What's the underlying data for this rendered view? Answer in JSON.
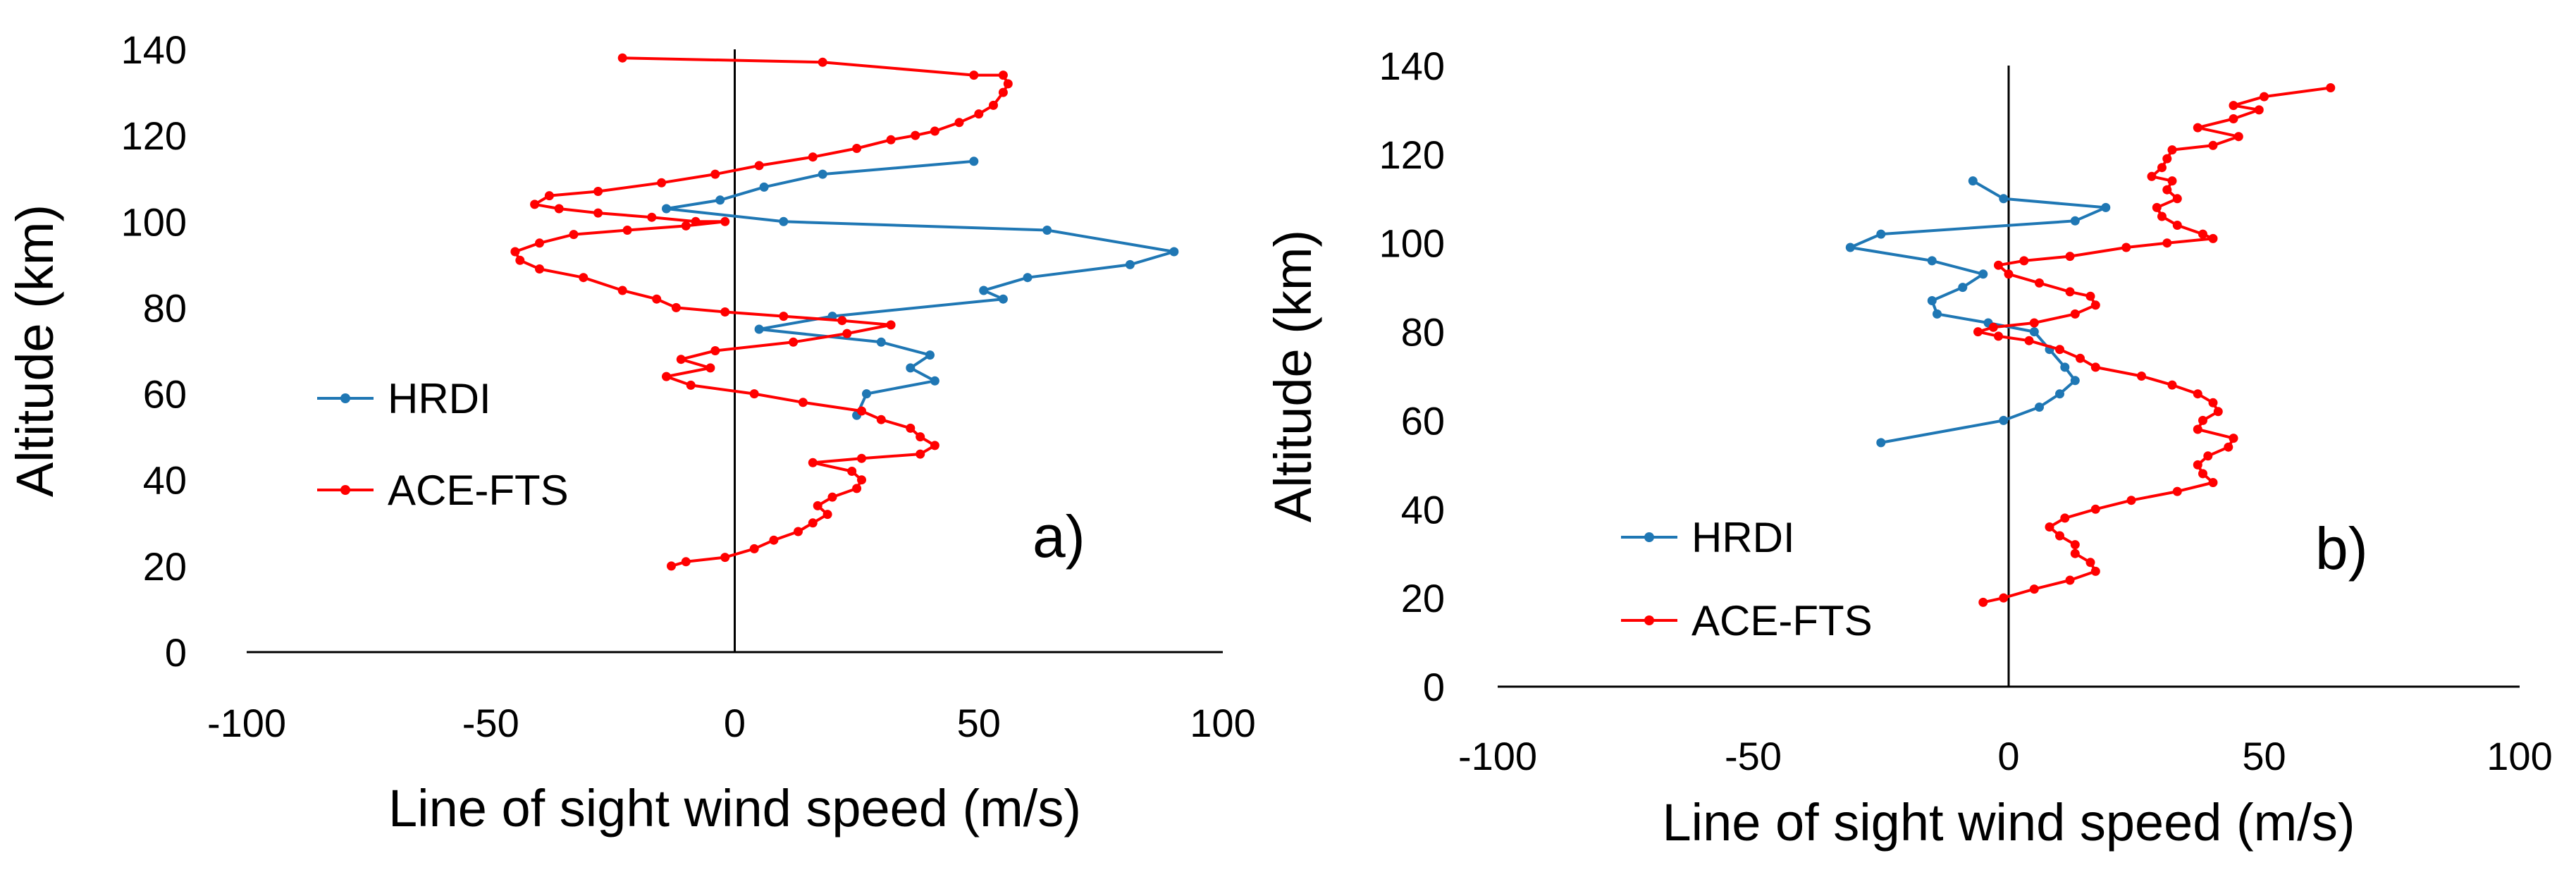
{
  "colors": {
    "hrdi": "#1f77b4",
    "ace": "#ff0000",
    "axis": "#000000",
    "background": "#ffffff"
  },
  "chart_data": [
    {
      "id": "a",
      "type": "line",
      "panel_label": "a)",
      "title": "",
      "xlabel": "Line of sight wind speed (m/s)",
      "ylabel": "Altitude (km)",
      "xlim": [
        -100,
        100
      ],
      "ylim": [
        0,
        140
      ],
      "xticks": [
        -100,
        -50,
        0,
        50,
        100
      ],
      "yticks": [
        0,
        20,
        40,
        60,
        80,
        100,
        120,
        140
      ],
      "legend_position": "left",
      "series": [
        {
          "name": "HRDI",
          "color": "#1f77b4",
          "points": [
            [
              49,
              114
            ],
            [
              18,
              111
            ],
            [
              6,
              108
            ],
            [
              -3,
              105
            ],
            [
              -14,
              103
            ],
            [
              10,
              100
            ],
            [
              64,
              98
            ],
            [
              90,
              93
            ],
            [
              81,
              90
            ],
            [
              60,
              87
            ],
            [
              51,
              84
            ],
            [
              55,
              82
            ],
            [
              20,
              78
            ],
            [
              5,
              75
            ],
            [
              30,
              72
            ],
            [
              40,
              69
            ],
            [
              36,
              66
            ],
            [
              41,
              63
            ],
            [
              27,
              60
            ],
            [
              25,
              55
            ]
          ]
        },
        {
          "name": "ACE-FTS",
          "color": "#ff0000",
          "points": [
            [
              -23,
              138
            ],
            [
              18,
              137
            ],
            [
              49,
              134
            ],
            [
              55,
              134
            ],
            [
              56,
              132
            ],
            [
              55,
              130
            ],
            [
              53,
              127
            ],
            [
              50,
              125
            ],
            [
              46,
              123
            ],
            [
              41,
              121
            ],
            [
              37,
              120
            ],
            [
              32,
              119
            ],
            [
              25,
              117
            ],
            [
              16,
              115
            ],
            [
              5,
              113
            ],
            [
              -4,
              111
            ],
            [
              -15,
              109
            ],
            [
              -28,
              107
            ],
            [
              -38,
              106
            ],
            [
              -41,
              104
            ],
            [
              -36,
              103
            ],
            [
              -28,
              102
            ],
            [
              -17,
              101
            ],
            [
              -8,
              100
            ],
            [
              -2,
              100
            ],
            [
              -10,
              99
            ],
            [
              -22,
              98
            ],
            [
              -33,
              97
            ],
            [
              -40,
              95
            ],
            [
              -45,
              93
            ],
            [
              -44,
              91
            ],
            [
              -40,
              89
            ],
            [
              -31,
              87
            ],
            [
              -23,
              84
            ],
            [
              -16,
              82
            ],
            [
              -12,
              80
            ],
            [
              -2,
              79
            ],
            [
              10,
              78
            ],
            [
              22,
              77
            ],
            [
              32,
              76
            ],
            [
              23,
              74
            ],
            [
              12,
              72
            ],
            [
              -4,
              70
            ],
            [
              -11,
              68
            ],
            [
              -5,
              66
            ],
            [
              -14,
              64
            ],
            [
              -9,
              62
            ],
            [
              4,
              60
            ],
            [
              14,
              58
            ],
            [
              26,
              56
            ],
            [
              30,
              54
            ],
            [
              36,
              52
            ],
            [
              38,
              50
            ],
            [
              41,
              48
            ],
            [
              38,
              46
            ],
            [
              26,
              45
            ],
            [
              16,
              44
            ],
            [
              24,
              42
            ],
            [
              26,
              40
            ],
            [
              25,
              38
            ],
            [
              20,
              36
            ],
            [
              17,
              34
            ],
            [
              19,
              32
            ],
            [
              16,
              30
            ],
            [
              13,
              28
            ],
            [
              8,
              26
            ],
            [
              4,
              24
            ],
            [
              -2,
              22
            ],
            [
              -10,
              21
            ],
            [
              -13,
              20
            ]
          ]
        }
      ]
    },
    {
      "id": "b",
      "type": "line",
      "panel_label": "b)",
      "title": "",
      "xlabel": "Line of sight wind speed (m/s)",
      "ylabel": "Altitude (km)",
      "xlim": [
        -100,
        100
      ],
      "ylim": [
        0,
        140
      ],
      "xticks": [
        -100,
        -50,
        0,
        50,
        100
      ],
      "yticks": [
        0,
        20,
        40,
        60,
        80,
        100,
        120,
        140
      ],
      "legend_position": "bottom-left",
      "series": [
        {
          "name": "HRDI",
          "color": "#1f77b4",
          "points": [
            [
              -7,
              114
            ],
            [
              -1,
              110
            ],
            [
              19,
              108
            ],
            [
              13,
              105
            ],
            [
              -25,
              102
            ],
            [
              -31,
              99
            ],
            [
              -15,
              96
            ],
            [
              -5,
              93
            ],
            [
              -9,
              90
            ],
            [
              -15,
              87
            ],
            [
              -14,
              84
            ],
            [
              -4,
              82
            ],
            [
              5,
              80
            ],
            [
              8,
              76
            ],
            [
              11,
              72
            ],
            [
              13,
              69
            ],
            [
              10,
              66
            ],
            [
              6,
              63
            ],
            [
              -1,
              60
            ],
            [
              -25,
              55
            ]
          ]
        },
        {
          "name": "ACE-FTS",
          "color": "#ff0000",
          "points": [
            [
              63,
              135
            ],
            [
              50,
              133
            ],
            [
              44,
              131
            ],
            [
              49,
              130
            ],
            [
              44,
              128
            ],
            [
              37,
              126
            ],
            [
              45,
              124
            ],
            [
              40,
              122
            ],
            [
              32,
              121
            ],
            [
              31,
              119
            ],
            [
              30,
              117
            ],
            [
              28,
              115
            ],
            [
              32,
              114
            ],
            [
              31,
              112
            ],
            [
              33,
              110
            ],
            [
              29,
              108
            ],
            [
              30,
              106
            ],
            [
              33,
              104
            ],
            [
              38,
              102
            ],
            [
              40,
              101
            ],
            [
              31,
              100
            ],
            [
              23,
              99
            ],
            [
              12,
              97
            ],
            [
              3,
              96
            ],
            [
              -2,
              95
            ],
            [
              0,
              93
            ],
            [
              6,
              91
            ],
            [
              12,
              89
            ],
            [
              16,
              88
            ],
            [
              17,
              86
            ],
            [
              13,
              84
            ],
            [
              5,
              82
            ],
            [
              -3,
              81
            ],
            [
              -6,
              80
            ],
            [
              -2,
              79
            ],
            [
              4,
              78
            ],
            [
              10,
              76
            ],
            [
              14,
              74
            ],
            [
              17,
              72
            ],
            [
              26,
              70
            ],
            [
              32,
              68
            ],
            [
              37,
              66
            ],
            [
              40,
              64
            ],
            [
              41,
              62
            ],
            [
              38,
              60
            ],
            [
              37,
              58
            ],
            [
              44,
              56
            ],
            [
              43,
              54
            ],
            [
              39,
              52
            ],
            [
              37,
              50
            ],
            [
              38,
              48
            ],
            [
              40,
              46
            ],
            [
              33,
              44
            ],
            [
              24,
              42
            ],
            [
              17,
              40
            ],
            [
              11,
              38
            ],
            [
              8,
              36
            ],
            [
              10,
              34
            ],
            [
              13,
              32
            ],
            [
              13,
              30
            ],
            [
              16,
              28
            ],
            [
              17,
              26
            ],
            [
              12,
              24
            ],
            [
              5,
              22
            ],
            [
              -1,
              20
            ],
            [
              -5,
              19
            ]
          ]
        }
      ]
    }
  ]
}
